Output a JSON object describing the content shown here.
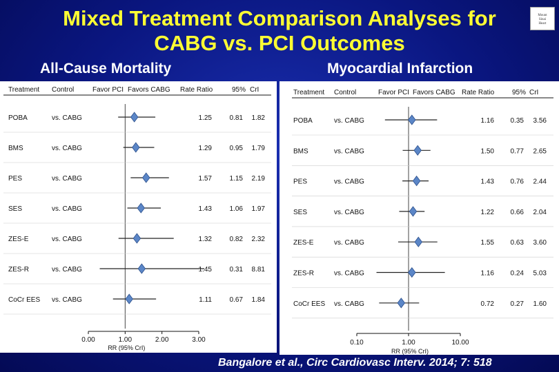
{
  "slide": {
    "title_line1": "Mixed Treatment Comparison Analyses for",
    "title_line2": "CABG vs. PCI Outcomes",
    "subtitle_left": "All-Cause Mortality",
    "subtitle_right": "Myocardial Infarction",
    "citation": "Bangalore et al., Circ Cardiovasc Interv. 2014; 7: 518",
    "logo_text": [
      "Mount",
      "Sinai",
      "Heart"
    ]
  },
  "colors": {
    "title": "#ffff33",
    "background": "#0a1680",
    "marker": "#5b86c7",
    "line": "#111111"
  },
  "chart_data": [
    {
      "type": "forest",
      "subtitle": "All-Cause Mortality",
      "header": [
        "Treatment",
        "Control",
        "Favor PCI",
        "Favors CABG",
        "Rate Ratio",
        "95%",
        "CrI"
      ],
      "rows": [
        {
          "treatment": "POBA",
          "control": "vs. CABG",
          "rr": "1.25",
          "lo": "0.81",
          "hi": "1.82"
        },
        {
          "treatment": "BMS",
          "control": "vs. CABG",
          "rr": "1.29",
          "lo": "0.95",
          "hi": "1.79"
        },
        {
          "treatment": "PES",
          "control": "vs. CABG",
          "rr": "1.57",
          "lo": "1.15",
          "hi": "2.19"
        },
        {
          "treatment": "SES",
          "control": "vs. CABG",
          "rr": "1.43",
          "lo": "1.06",
          "hi": "1.97"
        },
        {
          "treatment": "ZES-E",
          "control": "vs. CABG",
          "rr": "1.32",
          "lo": "0.82",
          "hi": "2.32"
        },
        {
          "treatment": "ZES-R",
          "control": "vs. CABG",
          "rr": "1.45",
          "lo": "0.31",
          "hi": "8.81"
        },
        {
          "treatment": "CoCr EES",
          "control": "vs. CABG",
          "rr": "1.11",
          "lo": "0.67",
          "hi": "1.84"
        }
      ],
      "scale": "linear",
      "xlim": [
        0,
        3
      ],
      "ticks": [
        "0.00",
        "1.00",
        "2.00",
        "3.00"
      ],
      "tick_values": [
        0,
        1,
        2,
        3
      ],
      "reference": 1,
      "xlabel": "RR (95% CrI)"
    },
    {
      "type": "forest",
      "subtitle": "Myocardial Infarction",
      "header": [
        "Treatment",
        "Control",
        "Favor PCI",
        "Favors CABG",
        "Rate Ratio",
        "95%",
        "CrI"
      ],
      "rows": [
        {
          "treatment": "POBA",
          "control": "vs. CABG",
          "rr": "1.16",
          "lo": "0.35",
          "hi": "3.56"
        },
        {
          "treatment": "BMS",
          "control": "vs. CABG",
          "rr": "1.50",
          "lo": "0.77",
          "hi": "2.65"
        },
        {
          "treatment": "PES",
          "control": "vs. CABG",
          "rr": "1.43",
          "lo": "0.76",
          "hi": "2.44"
        },
        {
          "treatment": "SES",
          "control": "vs. CABG",
          "rr": "1.22",
          "lo": "0.66",
          "hi": "2.04"
        },
        {
          "treatment": "ZES-E",
          "control": "vs. CABG",
          "rr": "1.55",
          "lo": "0.63",
          "hi": "3.60"
        },
        {
          "treatment": "ZES-R",
          "control": "vs. CABG",
          "rr": "1.16",
          "lo": "0.24",
          "hi": "5.03"
        },
        {
          "treatment": "CoCr EES",
          "control": "vs. CABG",
          "rr": "0.72",
          "lo": "0.27",
          "hi": "1.60"
        }
      ],
      "scale": "log",
      "xlim": [
        0.1,
        10
      ],
      "ticks": [
        "0.10",
        "1.00",
        "10.00"
      ],
      "tick_values": [
        0.1,
        1,
        10
      ],
      "reference": 1,
      "xlabel": "RR (95% CrI)"
    }
  ]
}
